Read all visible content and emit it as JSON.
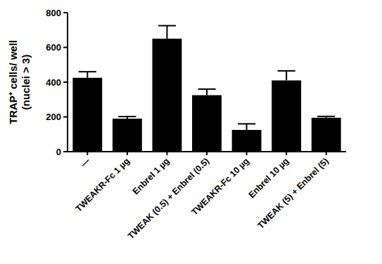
{
  "chart_data": {
    "type": "bar",
    "y_label": [
      "TRAP⁺ cells/ well",
      "(nuclei > 3)"
    ],
    "categories": [
      "—",
      "TWEAKR-Fc 1 µg",
      "Enbrel 1 µg",
      "TWEAK (0.5) + Enbrel (0.5)",
      "TWEAKR-Fc 10 µg",
      "Enbrel 10 µg",
      "TWEAK (5) + Enbrel (5)"
    ],
    "values": [
      425,
      190,
      650,
      325,
      125,
      410,
      195
    ],
    "errors": [
      35,
      12,
      75,
      35,
      35,
      55,
      8
    ],
    "color": "#000000",
    "ylim": [
      0,
      800
    ],
    "yticks": [
      0,
      200,
      400,
      600,
      800
    ],
    "grid": false
  }
}
